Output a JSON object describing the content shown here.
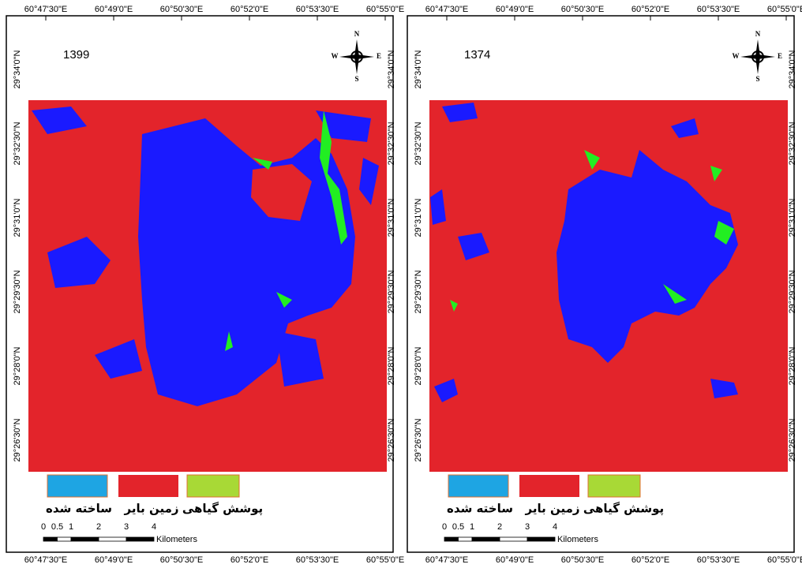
{
  "longitude": [
    "60°47'30\"E",
    "60°49'0\"E",
    "60°50'30\"E",
    "60°52'0\"E",
    "60°53'30\"E",
    "60°55'0\"E"
  ],
  "latitude": [
    "29°34'0\"N",
    "29°32'30\"N",
    "29°31'0\"N",
    "29°29'30\"N",
    "29°28'0\"N",
    "29°26'30\"N"
  ],
  "panels": [
    {
      "year": "1399"
    },
    {
      "year": "1374"
    }
  ],
  "north_arrow": {
    "n": "N",
    "s": "S",
    "w": "W",
    "e": "E"
  },
  "legend": [
    {
      "label": "ساخته شده",
      "color": "#1ea5e3"
    },
    {
      "label": "زمین بایر",
      "color": "#e3242b"
    },
    {
      "label": "پوشش گیاهی",
      "color": "#a8d936"
    }
  ],
  "scale": {
    "ticks": [
      0,
      0.5,
      1,
      2,
      3,
      4
    ],
    "unit": "Kilometers"
  }
}
